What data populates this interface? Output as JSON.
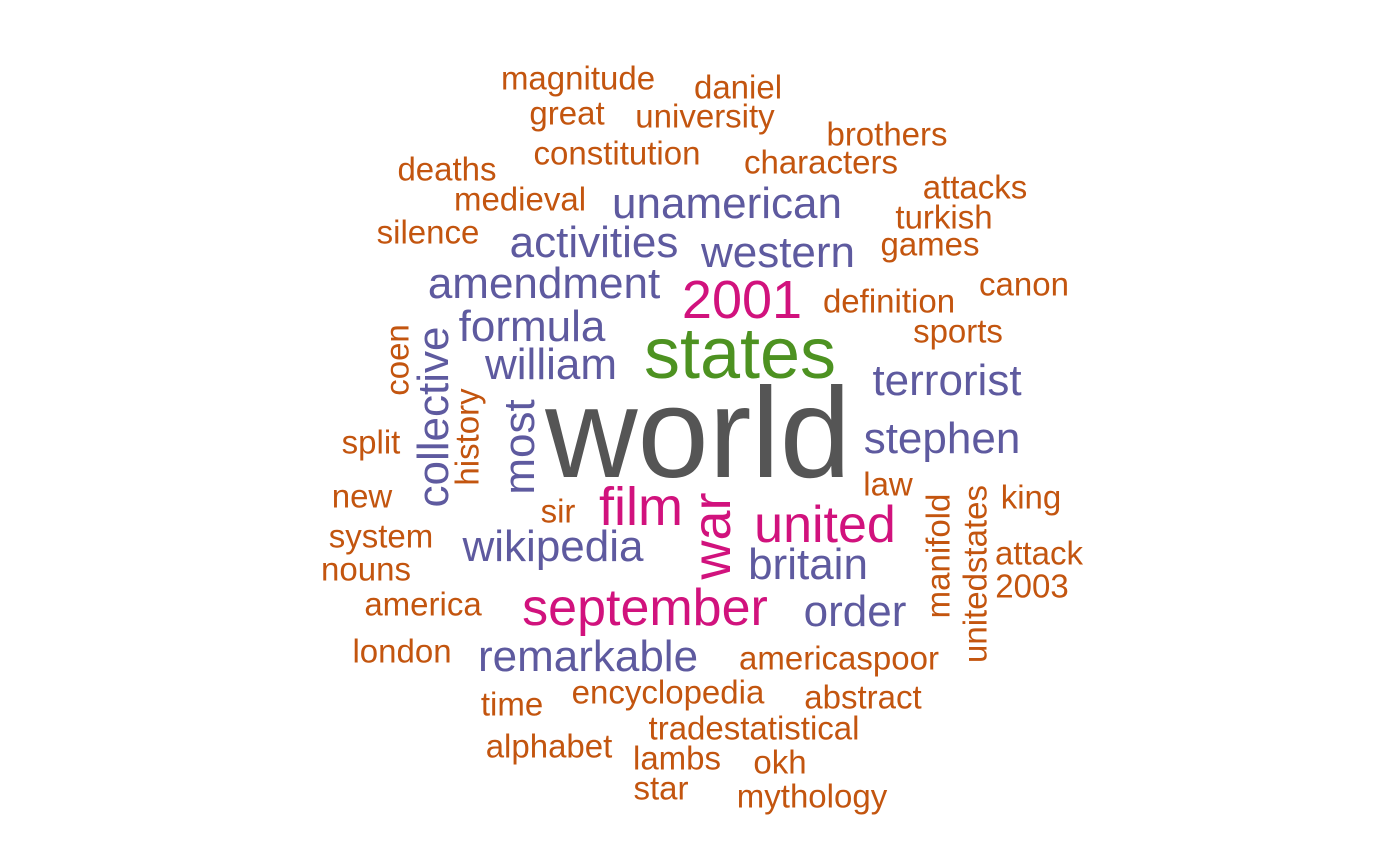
{
  "colors": {
    "tier1": "#555555",
    "tier2": "#4d9221",
    "tier3": "#d1127d",
    "tier4": "#5e5a9f",
    "tier5": "#c3550f"
  },
  "words": [
    "world",
    "states",
    "2001",
    "film",
    "war",
    "united",
    "september",
    "unamerican",
    "activities",
    "western",
    "amendment",
    "formula",
    "william",
    "terrorist",
    "stephen",
    "collective",
    "most",
    "britain",
    "wikipedia",
    "order",
    "remarkable",
    "magnitude",
    "daniel",
    "great",
    "university",
    "brothers",
    "constitution",
    "characters",
    "deaths",
    "attacks",
    "medieval",
    "turkish",
    "silence",
    "games",
    "canon",
    "definition",
    "sports",
    "coen",
    "history",
    "split",
    "law",
    "new",
    "sir",
    "king",
    "manifold",
    "unitedstates",
    "system",
    "attack",
    "nouns",
    "2003",
    "america",
    "london",
    "americaspoor",
    "encyclopedia",
    "abstract",
    "time",
    "tradestatistical",
    "alphabet",
    "lambs",
    "okh",
    "star",
    "mythology"
  ]
}
